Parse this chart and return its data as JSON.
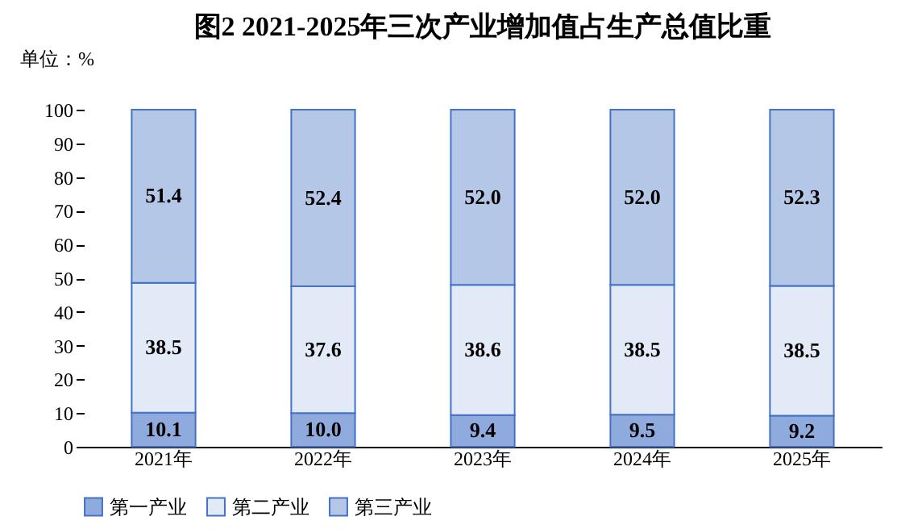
{
  "chart_data": {
    "type": "bar",
    "title": "图2  2021-2025年三次产业增加值占生产总值比重",
    "ylabel": "单位：%",
    "categories": [
      "2021年",
      "2022年",
      "2023年",
      "2024年",
      "2025年"
    ],
    "stacked": true,
    "legend": "bottom",
    "grid": false,
    "series": [
      {
        "name": "第一产业",
        "color": "#8faadc",
        "values": [
          10.1,
          10.0,
          9.4,
          9.5,
          9.2
        ],
        "value_labels": [
          "10.1",
          "10.0",
          "9.4",
          "9.5",
          "9.2"
        ]
      },
      {
        "name": "第二产业",
        "color": "#e3eaf7",
        "values": [
          38.5,
          37.6,
          38.6,
          38.5,
          38.5
        ],
        "value_labels": [
          "38.5",
          "37.6",
          "38.6",
          "38.5",
          "38.5"
        ]
      },
      {
        "name": "第三产业",
        "color": "#b4c7e7",
        "values": [
          51.4,
          52.4,
          52.0,
          52.0,
          52.3
        ],
        "value_labels": [
          "51.4",
          "52.4",
          "52.0",
          "52.0",
          "52.3"
        ]
      }
    ],
    "ylim": [
      0,
      100
    ],
    "yticks": [
      0,
      10,
      20,
      30,
      40,
      50,
      60,
      70,
      80,
      90,
      100
    ]
  }
}
